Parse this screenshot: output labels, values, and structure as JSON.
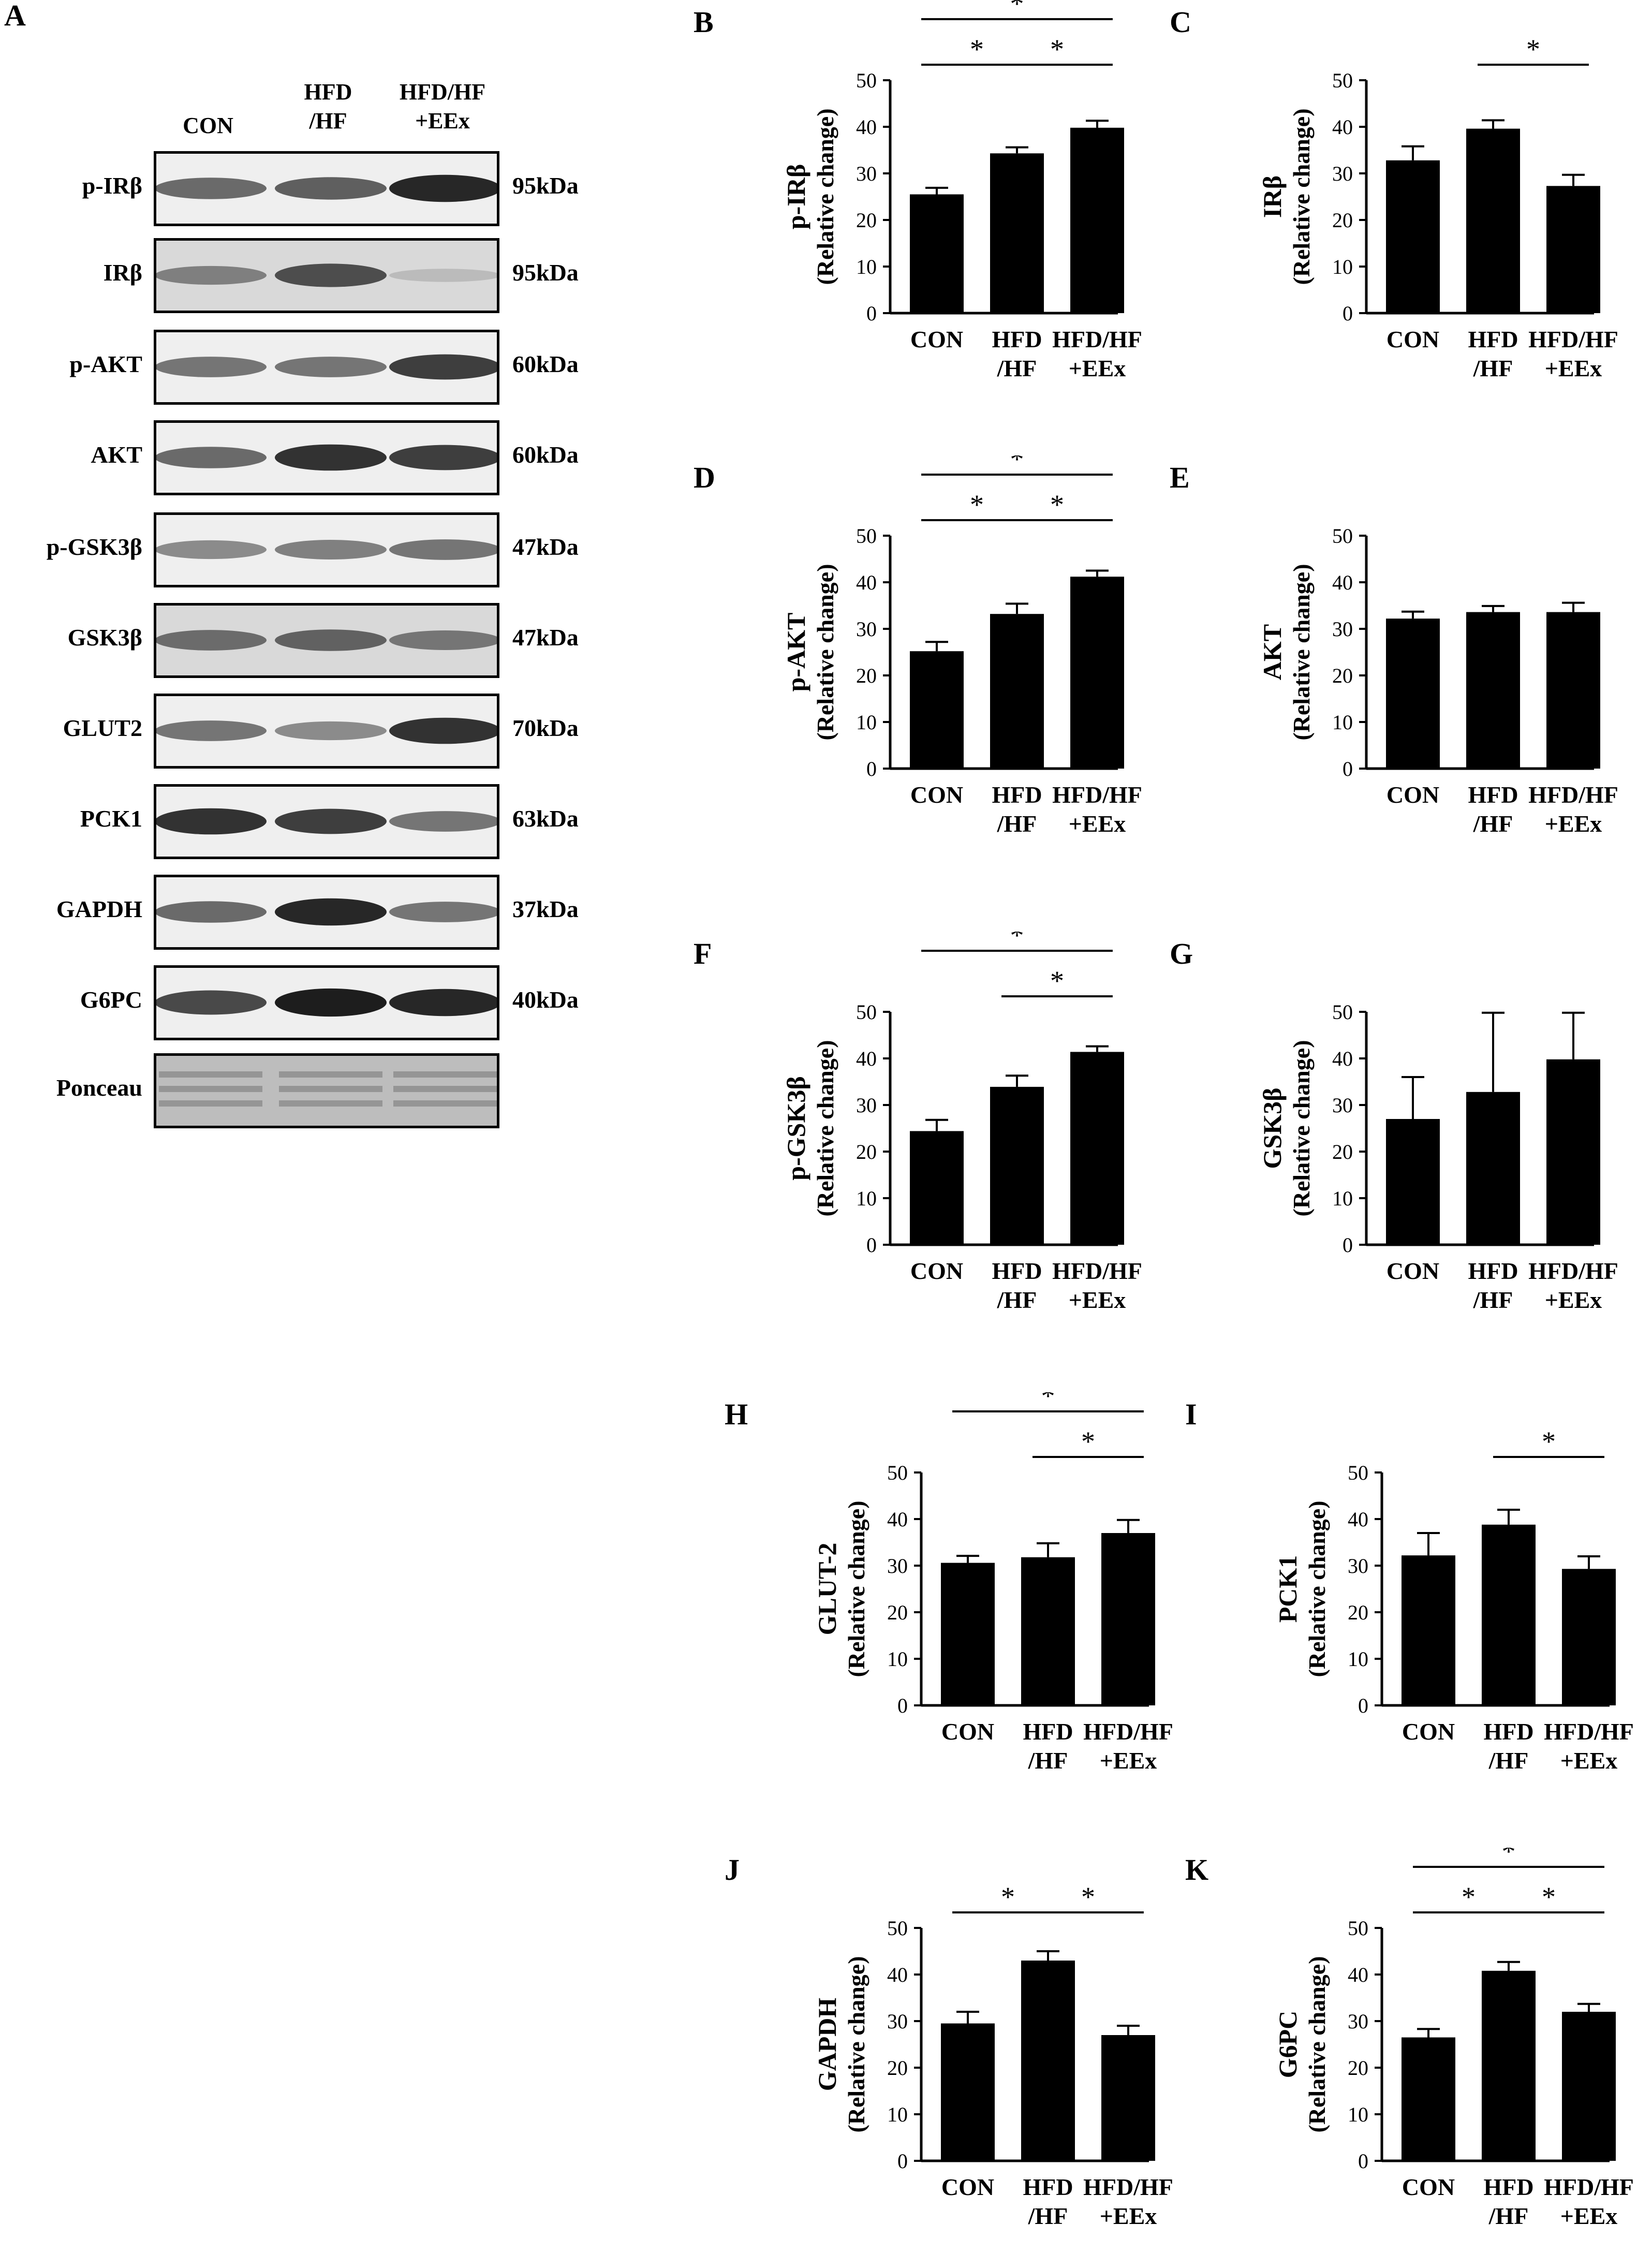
{
  "figure": {
    "blot_panel": {
      "letter": "A",
      "lanes": [
        {
          "line1": "CON",
          "line2": ""
        },
        {
          "line1": "HFD",
          "line2": "/HF"
        },
        {
          "line1": "HFD/HF",
          "line2": "+EEx"
        }
      ],
      "rows": [
        {
          "protein": "p-IRβ",
          "kda": "95kDa",
          "intensity": [
            0.6,
            0.65,
            0.9
          ]
        },
        {
          "protein": "IRβ",
          "kda": "95kDa",
          "intensity": [
            0.45,
            0.7,
            0.15
          ]
        },
        {
          "protein": "p-AKT",
          "kda": "60kDa",
          "intensity": [
            0.55,
            0.55,
            0.8
          ]
        },
        {
          "protein": "AKT",
          "kda": "60kDa",
          "intensity": [
            0.6,
            0.85,
            0.8
          ]
        },
        {
          "protein": "p-GSK3β",
          "kda": "47kDa",
          "intensity": [
            0.45,
            0.5,
            0.55
          ]
        },
        {
          "protein": "GSK3β",
          "kda": "47kDa",
          "intensity": [
            0.55,
            0.6,
            0.5
          ]
        },
        {
          "protein": "GLUT2",
          "kda": "70kDa",
          "intensity": [
            0.55,
            0.45,
            0.85
          ]
        },
        {
          "protein": "PCK1",
          "kda": "63kDa",
          "intensity": [
            0.85,
            0.8,
            0.55
          ]
        },
        {
          "protein": "GAPDH",
          "kda": "37kDa",
          "intensity": [
            0.6,
            0.9,
            0.55
          ]
        },
        {
          "protein": "G6PC",
          "kda": "40kDa",
          "intensity": [
            0.75,
            0.95,
            0.9
          ]
        },
        {
          "protein": "Ponceau",
          "kda": "",
          "intensity": [
            0.3,
            0.3,
            0.3
          ]
        }
      ]
    },
    "bar_color": "#000000"
  },
  "chart_data": [
    {
      "panel": "B",
      "type": "bar",
      "categories": [
        [
          "CON"
        ],
        [
          "HFD",
          "/HF"
        ],
        [
          "HFD/HF",
          "+EEx"
        ]
      ],
      "values": [
        25.5,
        34.3,
        39.8
      ],
      "errors": [
        1.4,
        1.3,
        1.5
      ],
      "ylabel": [
        "p-IRβ",
        "(Relative change)"
      ],
      "ylim": [
        0,
        50
      ],
      "yticks": [
        0,
        10,
        20,
        30,
        40,
        50
      ],
      "significance": [
        {
          "from": 0,
          "to": 2,
          "text": "*"
        },
        {
          "from": 0,
          "to": 1,
          "text": "*"
        },
        {
          "from": 1,
          "to": 2,
          "text": "*"
        }
      ]
    },
    {
      "panel": "C",
      "type": "bar",
      "categories": [
        [
          "CON"
        ],
        [
          "HFD",
          "/HF"
        ],
        [
          "HFD/HF",
          "+EEx"
        ]
      ],
      "values": [
        32.8,
        39.6,
        27.3
      ],
      "errors": [
        3.0,
        1.8,
        2.4
      ],
      "ylabel": [
        "IRβ",
        "(Relative change)"
      ],
      "ylim": [
        0,
        50
      ],
      "yticks": [
        0,
        10,
        20,
        30,
        40,
        50
      ],
      "significance": [
        {
          "from": 1,
          "to": 2,
          "text": "*"
        }
      ]
    },
    {
      "panel": "D",
      "type": "bar",
      "categories": [
        [
          "CON"
        ],
        [
          "HFD",
          "/HF"
        ],
        [
          "HFD/HF",
          "+EEx"
        ]
      ],
      "values": [
        25.2,
        33.2,
        41.2
      ],
      "errors": [
        2.0,
        2.2,
        1.3
      ],
      "ylabel": [
        "p-AKT",
        "(Relative change)"
      ],
      "ylim": [
        0,
        50
      ],
      "yticks": [
        0,
        10,
        20,
        30,
        40,
        50
      ],
      "significance": [
        {
          "from": 0,
          "to": 2,
          "text": "*"
        },
        {
          "from": 0,
          "to": 1,
          "text": "*"
        },
        {
          "from": 1,
          "to": 2,
          "text": "*"
        }
      ]
    },
    {
      "panel": "E",
      "type": "bar",
      "categories": [
        [
          "CON"
        ],
        [
          "HFD",
          "/HF"
        ],
        [
          "HFD/HF",
          "+EEx"
        ]
      ],
      "values": [
        32.2,
        33.6,
        33.6
      ],
      "errors": [
        1.5,
        1.3,
        2.0
      ],
      "ylabel": [
        "AKT",
        "(Relative change)"
      ],
      "ylim": [
        0,
        50
      ],
      "yticks": [
        0,
        10,
        20,
        30,
        40,
        50
      ],
      "significance": []
    },
    {
      "panel": "F",
      "type": "bar",
      "categories": [
        [
          "CON"
        ],
        [
          "HFD",
          "/HF"
        ],
        [
          "HFD/HF",
          "+EEx"
        ]
      ],
      "values": [
        24.4,
        33.9,
        41.4
      ],
      "errors": [
        2.4,
        2.4,
        1.2
      ],
      "ylabel": [
        "p-GSK3β",
        "(Relative change)"
      ],
      "ylim": [
        0,
        50
      ],
      "yticks": [
        0,
        10,
        20,
        30,
        40,
        50
      ],
      "significance": [
        {
          "from": 0,
          "to": 2,
          "text": "*"
        },
        {
          "from": 1,
          "to": 2,
          "text": "*"
        }
      ]
    },
    {
      "panel": "G",
      "type": "bar",
      "categories": [
        [
          "CON"
        ],
        [
          "HFD",
          "/HF"
        ],
        [
          "HFD/HF",
          "+EEx"
        ]
      ],
      "values": [
        27.0,
        32.8,
        39.8
      ],
      "errors": [
        9.0,
        17.0,
        10.0
      ],
      "ylabel": [
        "GSK3β",
        "(Relative change)"
      ],
      "ylim": [
        0,
        50
      ],
      "yticks": [
        0,
        10,
        20,
        30,
        40,
        50
      ],
      "significance": []
    },
    {
      "panel": "H",
      "type": "bar",
      "categories": [
        [
          "CON"
        ],
        [
          "HFD",
          "/HF"
        ],
        [
          "HFD/HF",
          "+EEx"
        ]
      ],
      "values": [
        30.6,
        31.8,
        37.0
      ],
      "errors": [
        1.5,
        3.0,
        2.8
      ],
      "ylabel": [
        "GLUT-2",
        "(Relative change)"
      ],
      "ylim": [
        0,
        50
      ],
      "yticks": [
        0,
        10,
        20,
        30,
        40,
        50
      ],
      "significance": [
        {
          "from": 0,
          "to": 2,
          "text": "*"
        },
        {
          "from": 1,
          "to": 2,
          "text": "*"
        }
      ]
    },
    {
      "panel": "I",
      "type": "bar",
      "categories": [
        [
          "CON"
        ],
        [
          "HFD",
          "/HF"
        ],
        [
          "HFD/HF",
          "+EEx"
        ]
      ],
      "values": [
        32.2,
        38.8,
        29.3
      ],
      "errors": [
        4.8,
        3.2,
        2.7
      ],
      "ylabel": [
        "PCK1",
        "(Relative change)"
      ],
      "ylim": [
        0,
        50
      ],
      "yticks": [
        0,
        10,
        20,
        30,
        40,
        50
      ],
      "significance": [
        {
          "from": 1,
          "to": 2,
          "text": "*"
        }
      ]
    },
    {
      "panel": "J",
      "type": "bar",
      "categories": [
        [
          "CON"
        ],
        [
          "HFD",
          "/HF"
        ],
        [
          "HFD/HF",
          "+EEx"
        ]
      ],
      "values": [
        29.5,
        43.0,
        27.0
      ],
      "errors": [
        2.5,
        2.0,
        2.0
      ],
      "ylabel": [
        "GAPDH",
        "(Relative change)"
      ],
      "ylim": [
        0,
        50
      ],
      "yticks": [
        0,
        10,
        20,
        30,
        40,
        50
      ],
      "significance": [
        {
          "from": 0,
          "to": 1,
          "text": "*"
        },
        {
          "from": 1,
          "to": 2,
          "text": "*"
        }
      ]
    },
    {
      "panel": "K",
      "type": "bar",
      "categories": [
        [
          "CON"
        ],
        [
          "HFD",
          "/HF"
        ],
        [
          "HFD/HF",
          "+EEx"
        ]
      ],
      "values": [
        26.5,
        40.8,
        32.0
      ],
      "errors": [
        1.8,
        1.9,
        1.7
      ],
      "ylabel": [
        "G6PC",
        "(Relative change)"
      ],
      "ylim": [
        0,
        50
      ],
      "yticks": [
        0,
        10,
        20,
        30,
        40,
        50
      ],
      "significance": [
        {
          "from": 0,
          "to": 2,
          "text": "*"
        },
        {
          "from": 0,
          "to": 1,
          "text": "*"
        },
        {
          "from": 1,
          "to": 2,
          "text": "*"
        }
      ]
    }
  ]
}
